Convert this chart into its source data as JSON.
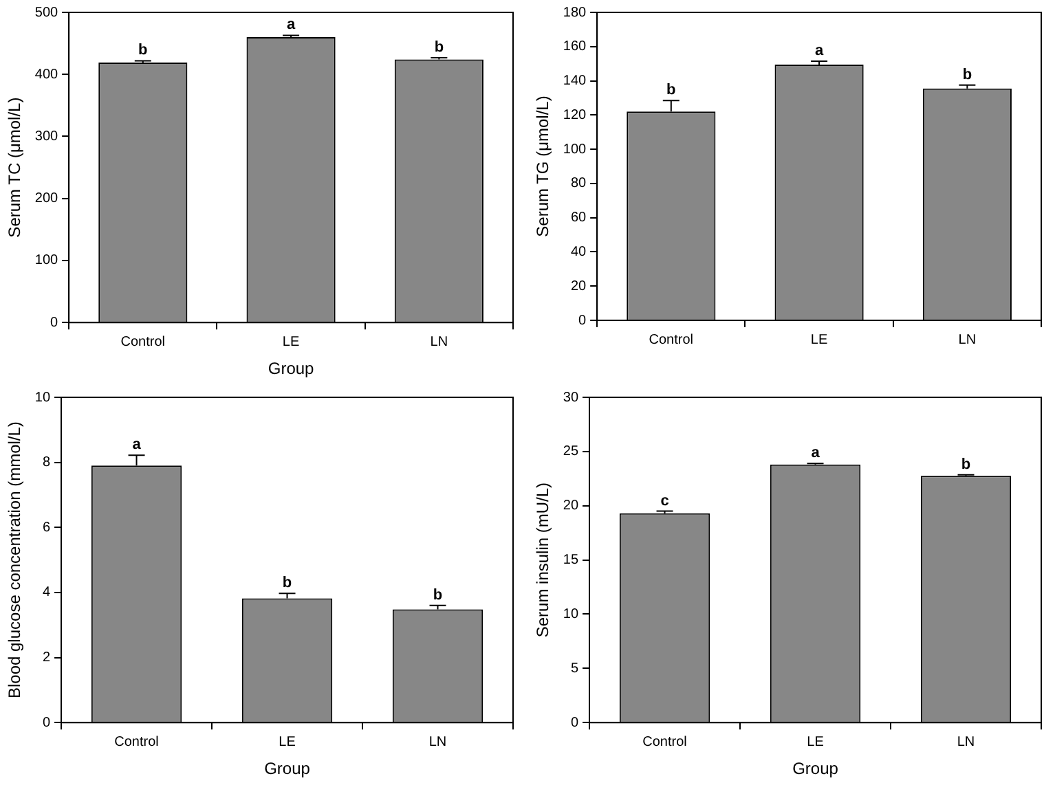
{
  "chart_data": [
    {
      "type": "bar",
      "xlabel": "Group",
      "ylabel": "Serum TC (μmol/L)",
      "categories": [
        "Control",
        "LE",
        "LN"
      ],
      "values": [
        419,
        460,
        424
      ],
      "errors": [
        3,
        3,
        3
      ],
      "color": "#878787",
      "ylim": [
        0,
        500
      ],
      "yticks": [
        0,
        100,
        200,
        300,
        400,
        500
      ],
      "grid": false,
      "legend": false,
      "annotations": [
        {
          "text": "b",
          "x": "Control",
          "y": 422
        },
        {
          "text": "a",
          "x": "LE",
          "y": 463
        },
        {
          "text": "b",
          "x": "LN",
          "y": 427
        }
      ]
    },
    {
      "type": "bar",
      "ylabel": "Serum TG (μmol/L)",
      "categories": [
        "Control",
        "LE",
        "LN"
      ],
      "values": [
        122,
        149.5,
        135.5
      ],
      "errors": [
        6.5,
        2,
        2
      ],
      "color": "#878787",
      "ylim": [
        0,
        180
      ],
      "yticks": [
        0,
        20,
        40,
        60,
        80,
        100,
        120,
        140,
        160,
        180
      ],
      "grid": false,
      "legend": false,
      "annotations": [
        {
          "text": "b",
          "x": "Control",
          "y": 128.5
        },
        {
          "text": "a",
          "x": "LE",
          "y": 151.5
        },
        {
          "text": "b",
          "x": "LN",
          "y": 137.5
        }
      ]
    },
    {
      "type": "bar",
      "xlabel": "Group",
      "ylabel": "Blood glucose concentration (mmol/L)",
      "categories": [
        "Control",
        "LE",
        "LN"
      ],
      "values": [
        7.9,
        3.82,
        3.48
      ],
      "errors": [
        0.32,
        0.15,
        0.12
      ],
      "color": "#878787",
      "ylim": [
        0,
        10
      ],
      "yticks": [
        0,
        2,
        4,
        6,
        8,
        10
      ],
      "grid": false,
      "legend": false,
      "annotations": [
        {
          "text": "a",
          "x": "Control",
          "y": 8.22
        },
        {
          "text": "b",
          "x": "LE",
          "y": 3.97
        },
        {
          "text": "b",
          "x": "LN",
          "y": 3.6
        }
      ]
    },
    {
      "type": "bar",
      "xlabel": "Group",
      "ylabel": "Serum insulin (mU/L)",
      "categories": [
        "Control",
        "LE",
        "LN"
      ],
      "values": [
        19.3,
        23.8,
        22.75
      ],
      "errors": [
        0.2,
        0.1,
        0.1
      ],
      "color": "#878787",
      "ylim": [
        0,
        30
      ],
      "yticks": [
        0,
        5,
        10,
        15,
        20,
        25,
        30
      ],
      "grid": false,
      "legend": false,
      "annotations": [
        {
          "text": "c",
          "x": "Control",
          "y": 19.5
        },
        {
          "text": "a",
          "x": "LE",
          "y": 23.9
        },
        {
          "text": "b",
          "x": "LN",
          "y": 22.85
        }
      ]
    }
  ]
}
